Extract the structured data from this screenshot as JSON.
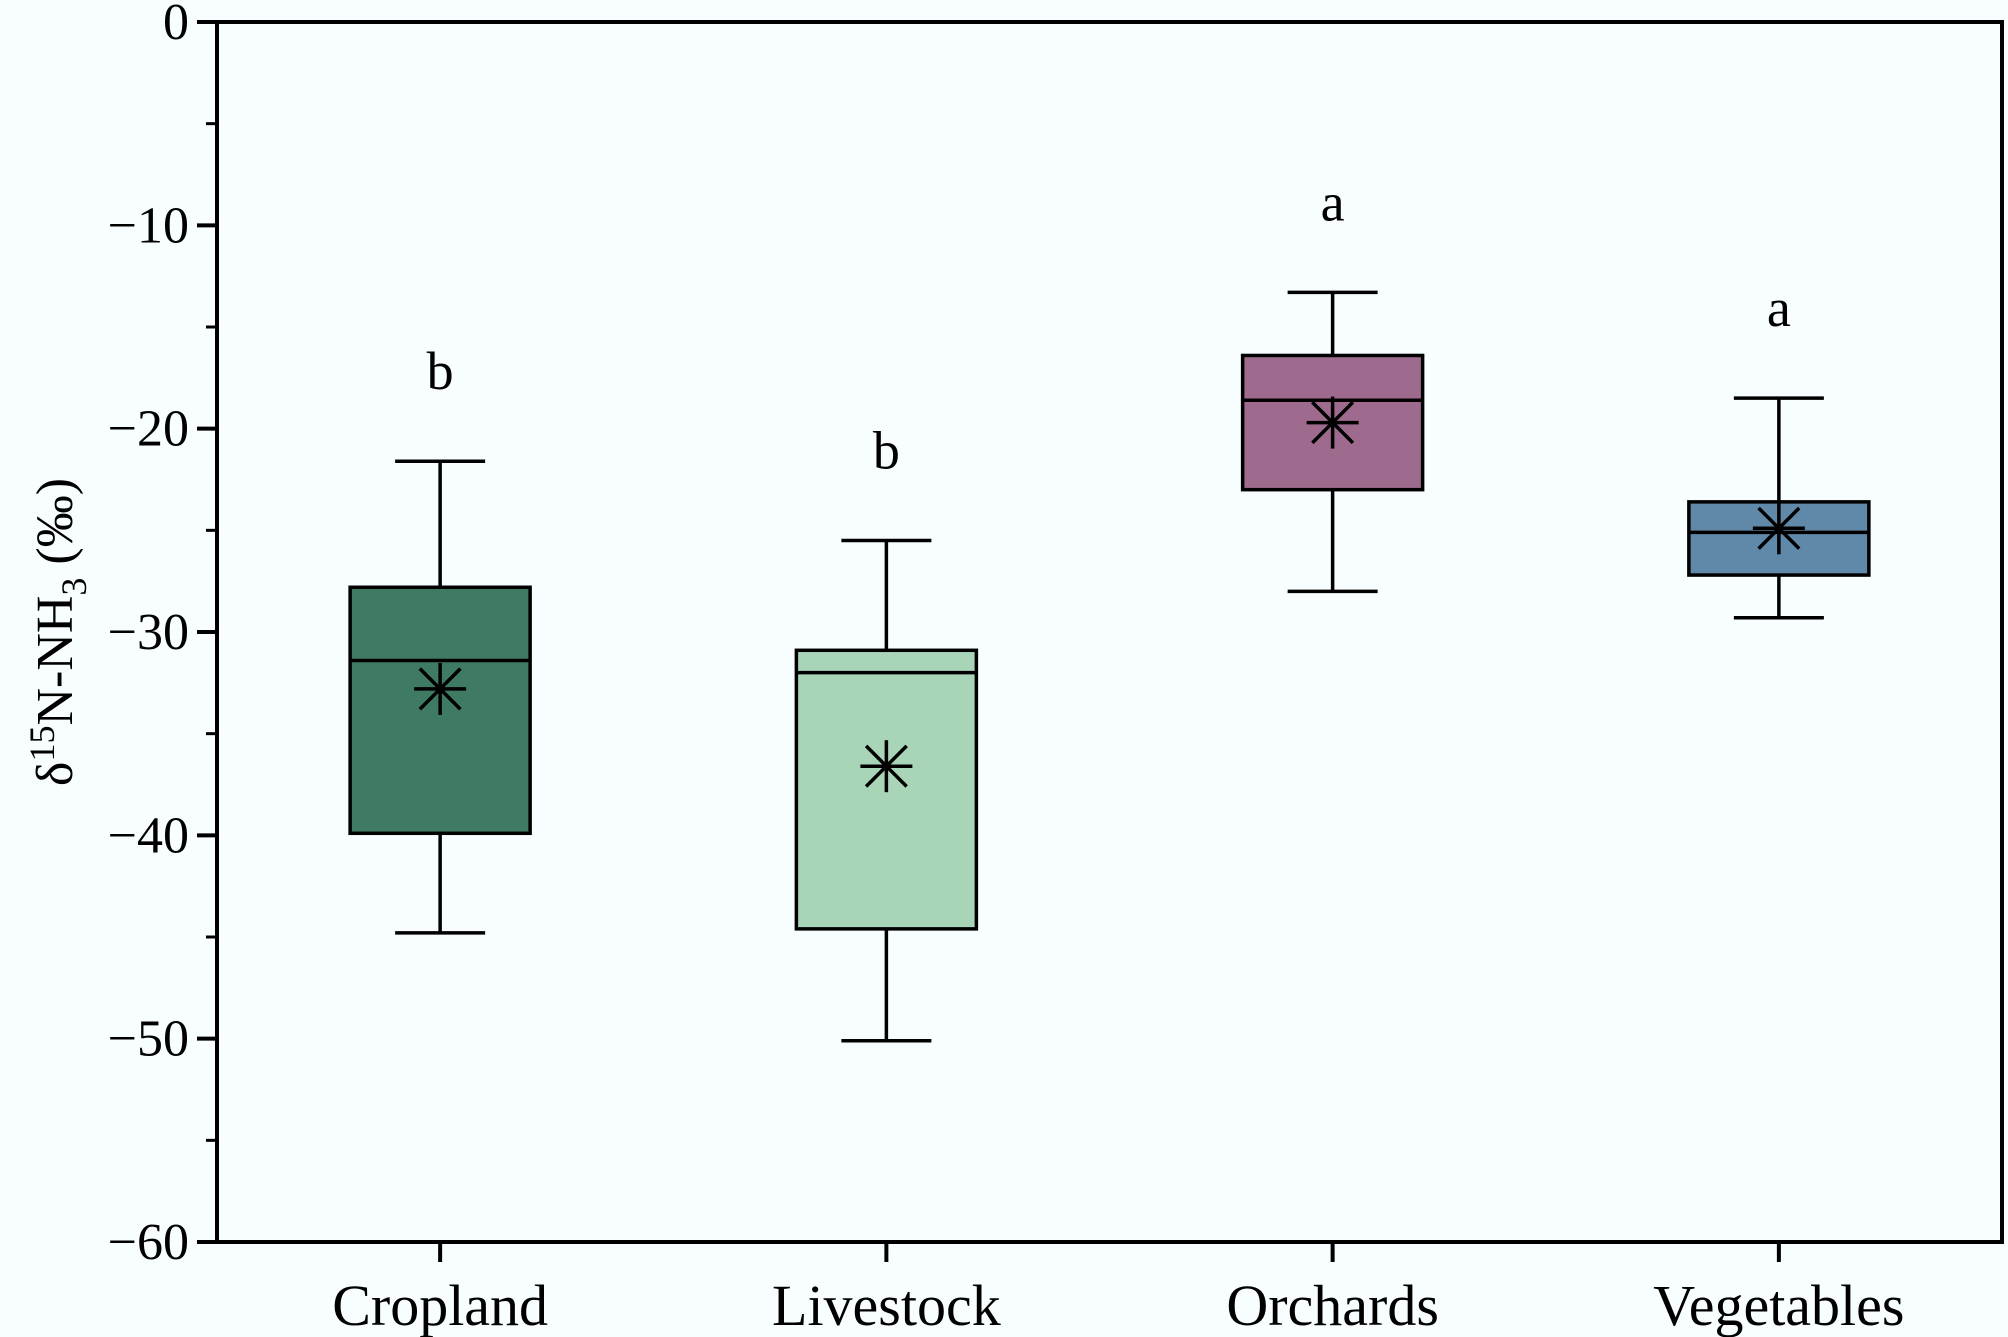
{
  "chart_data": {
    "type": "box",
    "ylabel_parts": {
      "prefix": "δ",
      "sup": "15",
      "mid": "N-NH",
      "sub": "3",
      "suffix": " (‰)"
    },
    "ylim": [
      -60,
      0
    ],
    "yticks": [
      0,
      -10,
      -20,
      -30,
      -40,
      -50,
      -60
    ],
    "yticks_minor": [
      -5,
      -15,
      -25,
      -35,
      -45,
      -55
    ],
    "categories": [
      "Cropland",
      "Livestock",
      "Orchards",
      "Vegetables"
    ],
    "boxes": [
      {
        "category": "Cropland",
        "whisker_low": -44.8,
        "q1": -39.9,
        "median": -31.4,
        "q3": -27.8,
        "whisker_high": -21.6,
        "mean": -32.8,
        "letter": "b",
        "color": "#3f7a62"
      },
      {
        "category": "Livestock",
        "whisker_low": -50.1,
        "q1": -44.6,
        "median": -32.0,
        "q3": -30.9,
        "whisker_high": -25.5,
        "mean": -36.6,
        "letter": "b",
        "color": "#a8d5b8"
      },
      {
        "category": "Orchards",
        "whisker_low": -28.0,
        "q1": -23.0,
        "median": -18.6,
        "q3": -16.4,
        "whisker_high": -13.3,
        "mean": -19.7,
        "letter": "a",
        "color": "#9e6b8e"
      },
      {
        "category": "Vegetables",
        "whisker_low": -29.3,
        "q1": -27.2,
        "median": -25.1,
        "q3": -23.6,
        "whisker_high": -18.5,
        "mean": -24.9,
        "letter": "a",
        "color": "#6088a8"
      }
    ],
    "grid": false,
    "legend": "none"
  }
}
